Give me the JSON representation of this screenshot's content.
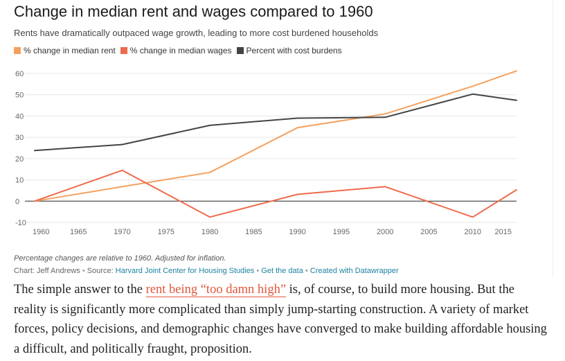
{
  "chart_data": {
    "type": "line",
    "title": "Change in median rent and wages compared to 1960",
    "subtitle": "Rents have dramatically outpaced wage growth, leading to more cost burdened households",
    "x_ticks": [
      1960,
      1965,
      1970,
      1975,
      1980,
      1985,
      1990,
      1995,
      2000,
      2005,
      2010,
      2015
    ],
    "y_ticks": [
      -10,
      0,
      10,
      20,
      30,
      40,
      50,
      60
    ],
    "xlim": [
      1960,
      2015
    ],
    "ylim": [
      -10,
      60
    ],
    "grid": true,
    "legend_position": "top-left",
    "series": [
      {
        "name": "% change in median rent",
        "color": "#f5a15f",
        "x": [
          1960,
          1970,
          1980,
          1990,
          2000,
          2010,
          2015
        ],
        "values": [
          0,
          6.8,
          13.5,
          34.5,
          41,
          54,
          61.2
        ]
      },
      {
        "name": "% change in median wages",
        "color": "#ef6a4c",
        "x": [
          1960,
          1970,
          1980,
          1990,
          2000,
          2010,
          2015
        ],
        "values": [
          0,
          14.5,
          -7.5,
          3.2,
          6.8,
          -7.5,
          5.3
        ]
      },
      {
        "name": "Percent with cost burdens",
        "color": "#444444",
        "x": [
          1960,
          1970,
          1980,
          1990,
          2000,
          2010,
          2015
        ],
        "values": [
          23.8,
          26.6,
          35.6,
          39,
          39.4,
          50.3,
          47.4
        ]
      }
    ],
    "notes": "Percentage changes are relative to 1960. Adjusted for inflation."
  },
  "credits": {
    "prefix": "Chart: Jeff Andrews",
    "separator": "•",
    "source_label": "Source:",
    "source_link": "Harvard Joint Center for Housing Studies",
    "get_data": "Get the data",
    "created_with": "Created with Datawrapper"
  },
  "article": {
    "before_link": "The simple answer to the ",
    "link_text": "rent being “too damn high”",
    "after_link": " is, of course, to build more housing. But the reality is significantly more complicated than simply jump-starting construction. A variety of market forces, policy decisions, and demographic changes have converged to make building affordable housing a difficult, and politically fraught, proposition."
  },
  "colors": {
    "grid": "#e6e6e6",
    "zero_line": "#222222",
    "tick_text": "#666666",
    "link": "#1d81a2",
    "article_link": "#e3563b"
  }
}
